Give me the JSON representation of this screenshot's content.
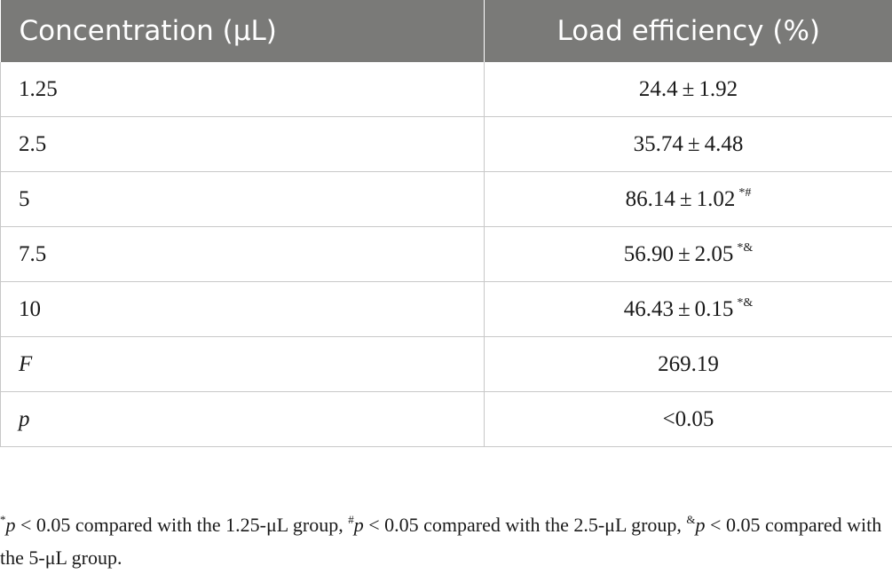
{
  "table": {
    "headers": [
      "Concentration (μL)",
      "Load efficiency (%)"
    ],
    "rows": [
      {
        "concentration": "1.25",
        "efficiency": "24.4 ± 1.92",
        "marks": ""
      },
      {
        "concentration": "2.5",
        "efficiency": "35.74 ± 4.48",
        "marks": ""
      },
      {
        "concentration": "5",
        "efficiency": "86.14 ± 1.02",
        "marks": "*#"
      },
      {
        "concentration": "7.5",
        "efficiency": "56.90 ± 2.05",
        "marks": "*&"
      },
      {
        "concentration": "10",
        "efficiency": "46.43 ± 0.15",
        "marks": "*&"
      },
      {
        "concentration": "F",
        "efficiency": "269.19",
        "marks": ""
      },
      {
        "concentration": "p",
        "efficiency": "<0.05",
        "marks": ""
      }
    ]
  },
  "footnote": {
    "sym1": "*",
    "p1": "p",
    "text1": " < 0.05 compared with the 1.25-μL group, ",
    "sym2": "#",
    "p2": "p",
    "text2": " < 0.05 compared with the 2.5-μL group, ",
    "sym3": "&",
    "p3": "p",
    "text3": " < 0.05 compared with the 5-μL group."
  }
}
